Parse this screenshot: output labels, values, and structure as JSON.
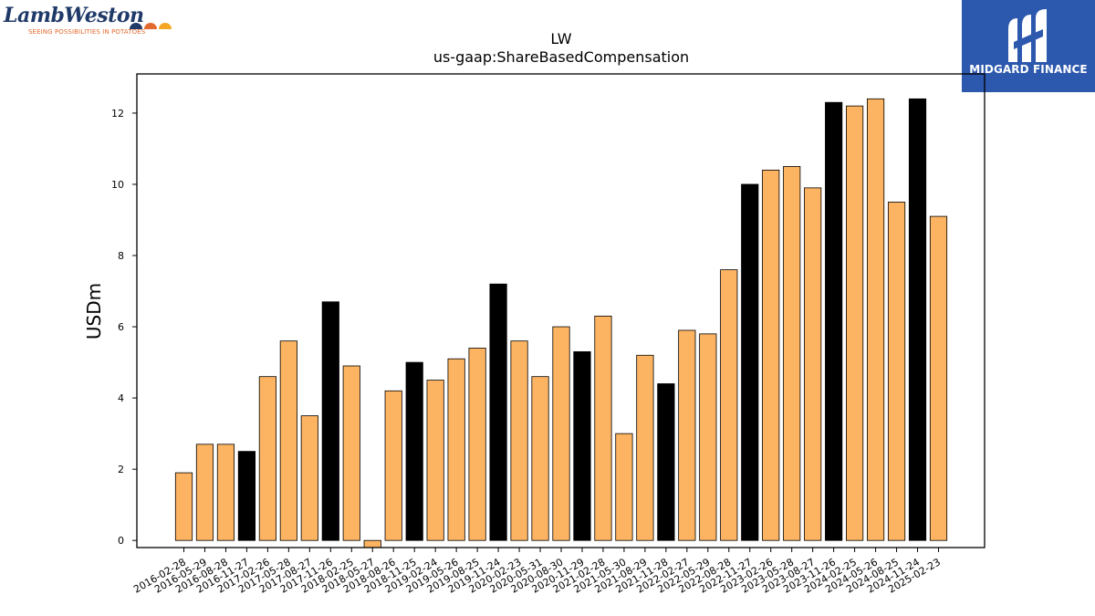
{
  "logos": {
    "left": {
      "wordmark": "LambWeston",
      "tagline": "SEEING POSSIBILITIES IN POTATOES"
    },
    "right": {
      "wordmark": "MIDGARD FINANCE",
      "background": "#2c58ad"
    }
  },
  "chart_data": {
    "type": "bar",
    "title": "LW",
    "subtitle": "us-gaap:ShareBasedCompensation",
    "xlabel": "",
    "ylabel": "USDm",
    "ylim": [
      -0.2,
      13.1
    ],
    "yticks": [
      0,
      2,
      4,
      6,
      8,
      10,
      12
    ],
    "grid": false,
    "colors": {
      "quarter": "#fdb462",
      "fiscal_q4": "#000000",
      "edge": "#000000"
    },
    "categories": [
      "2016-02-28",
      "2016-05-29",
      "2016-08-28",
      "2016-11-27",
      "2017-02-26",
      "2017-05-28",
      "2017-08-27",
      "2017-11-26",
      "2018-02-25",
      "2018-05-27",
      "2018-08-26",
      "2018-11-25",
      "2019-02-24",
      "2019-05-26",
      "2019-08-25",
      "2019-11-24",
      "2020-02-23",
      "2020-05-31",
      "2020-08-30",
      "2020-11-29",
      "2021-02-28",
      "2021-05-30",
      "2021-08-29",
      "2021-11-28",
      "2022-02-27",
      "2022-05-29",
      "2022-08-28",
      "2022-11-27",
      "2023-02-26",
      "2023-05-28",
      "2023-08-27",
      "2023-11-26",
      "2024-02-25",
      "2024-05-26",
      "2024-08-25",
      "2024-11-24",
      "2025-02-23"
    ],
    "values": [
      1.9,
      2.7,
      2.7,
      2.5,
      4.6,
      5.6,
      3.5,
      6.7,
      4.9,
      -0.2,
      4.2,
      5.0,
      4.5,
      5.1,
      5.4,
      7.2,
      5.6,
      4.6,
      6.0,
      5.3,
      6.3,
      3.0,
      5.2,
      4.4,
      5.9,
      5.8,
      7.6,
      10.0,
      10.4,
      10.5,
      9.9,
      12.3,
      12.2,
      12.4,
      9.5,
      12.4,
      9.1
    ],
    "highlight": [
      false,
      false,
      false,
      true,
      false,
      false,
      false,
      true,
      false,
      false,
      false,
      true,
      false,
      false,
      false,
      true,
      false,
      false,
      false,
      true,
      false,
      false,
      false,
      true,
      false,
      false,
      false,
      true,
      false,
      false,
      false,
      true,
      false,
      false,
      false,
      true,
      false
    ]
  }
}
